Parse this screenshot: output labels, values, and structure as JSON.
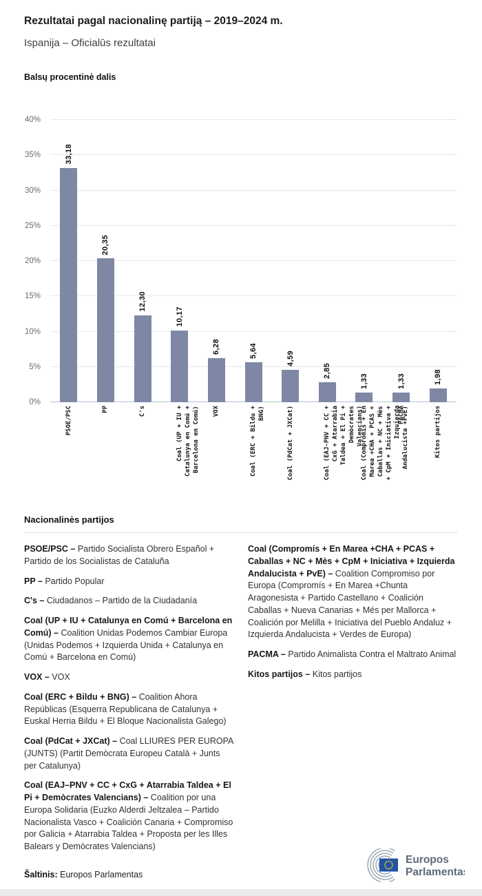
{
  "header": {
    "title": "Rezultatai pagal nacionalinę partiją – 2019–2024 m.",
    "subtitle": "Ispanija – Oficialūs rezultatai"
  },
  "chart_data": {
    "type": "bar",
    "title": "Balsų procentinė dalis",
    "categories": [
      "PSOE/PSC",
      "PP",
      "C's",
      "Coal (UP + IU + Catalunya en Comú + Barcelona en Comú)",
      "VOX",
      "Coal (ERC + Bildu + BNG)",
      "Coal (PdCat + JXCat)",
      "Coal (EAJ-PNV + CC + CxG + Atarrabia Taldea + El Pi + Demòcrates Valencians)",
      "Coal (Compromís + En Marea +CHA + PCAS + Caballas + NC + Mès + CpM + Iniciativa + Izquierda Andalucista +PvE)",
      "PACMA",
      "Kitos partijos"
    ],
    "category_tick_lines": [
      [
        "PSOE/PSC"
      ],
      [
        "PP"
      ],
      [
        "C's"
      ],
      [
        "Coal (UP + IU +",
        "Catalunya en Comú +",
        "Barcelona en Comú)"
      ],
      [
        "VOX"
      ],
      [
        "Coal (ERC + Bildu +",
        "BNG)"
      ],
      [
        "Coal (PdCat + JXCat)"
      ],
      [
        "Coal (EAJ-PNV + CC +",
        "CxG + Atarrabia",
        "Taldea + El Pi +",
        "Demòcrates",
        "Valencians)"
      ],
      [
        "Coal (Compromís + En",
        "Marea +CHA + PCAS +",
        "Caballas + NC + Mès",
        "+ CpM + Iniciativa +",
        "Izquierda",
        "Andalucista +PvE)"
      ],
      [
        "PACMA"
      ],
      [
        "Kitos partijos"
      ]
    ],
    "values": [
      33.18,
      20.35,
      12.3,
      10.17,
      6.28,
      5.64,
      4.59,
      2.85,
      1.33,
      1.33,
      1.98
    ],
    "value_labels": [
      "33,18",
      "20,35",
      "12,30",
      "10,17",
      "6,28",
      "5,64",
      "4,59",
      "2,85",
      "1,33",
      "1,33",
      "1,98"
    ],
    "xlabel": "",
    "ylabel": "",
    "ylim": [
      0,
      40
    ],
    "ytick_step": 5,
    "ytick_labels": [
      "0%",
      "5%",
      "10%",
      "15%",
      "20%",
      "25%",
      "30%",
      "35%",
      "40%"
    ],
    "grid": true,
    "legend_position": "none",
    "bar_color": "#7e88a5"
  },
  "legend": {
    "title": "Nacionalinės partijos",
    "columns": [
      [
        {
          "term": "PSOE/PSC –",
          "description": "Partido Socialista Obrero Español + Partido de los Socialistas de Cataluña"
        },
        {
          "term": "PP –",
          "description": "Partido Popular"
        },
        {
          "term": "C's –",
          "description": "Ciudadanos – Partido de la Ciudadanía"
        },
        {
          "term": "Coal (UP + IU + Catalunya en Comú + Barcelona en Comú) –",
          "description": "Coalition Unidas Podemos Cambiar Europa (Unidas Podemos + Izquierda Unida + Catalunya en Comú + Barcelona en Comú)"
        },
        {
          "term": "VOX –",
          "description": "VOX"
        },
        {
          "term": "Coal (ERC + Bildu + BNG) –",
          "description": "Coalition Ahora Repúblicas (Esquerra Republicana de Catalunya + Euskal Herria Bildu + El Bloque Nacionalista Galego)"
        },
        {
          "term": "Coal (PdCat + JXCat) –",
          "description": "Coal LLIURES PER EUROPA (JUNTS) (Partit Demòcrata Europeu Català + Junts per Catalunya)"
        },
        {
          "term": "Coal (EAJ–PNV + CC + CxG + Atarrabia Taldea + El Pi + Demòcrates Valencians) –",
          "description": "Coalition por una Europa Solidaria (Euzko Alderdi Jeltzalea – Partido Nacionalista Vasco + Coalición Canaria + Compromiso por Galicia + Atarrabia Taldea + Proposta per les Illes Balears y Demòcrates Valencians)"
        }
      ],
      [
        {
          "term": "Coal (Compromís + En Marea +CHA + PCAS + Caballas + NC + Mès + CpM + Iniciativa + Izquierda Andalucista + PvE) –",
          "description": "Coalition Compromiso por Europa (Compromís + En Marea +Chunta Aragonesista + Partido Castellano + Coalición Caballas + Nueva Canarias + Més per Mallorca + Coalición por Melilla + Iniciativa del Pueblo Andaluz + Izquierda Andalucista + Verdes de Europa)"
        },
        {
          "term": "PACMA –",
          "description": "Partido Animalista Contra el Maltrato Animal"
        },
        {
          "term": "Kitos partijos –",
          "description": "Kitos partijos"
        }
      ]
    ]
  },
  "footer": {
    "source_label": "Šaltinis:",
    "source_value": "Europos Parlamentas",
    "logo": {
      "line1": "Europos",
      "line2": "Parlamentas",
      "text_color": "#5d6977",
      "arc_color": "#9aa7b3",
      "flag_color": "#2253a3",
      "star_color": "#ffd617"
    }
  }
}
